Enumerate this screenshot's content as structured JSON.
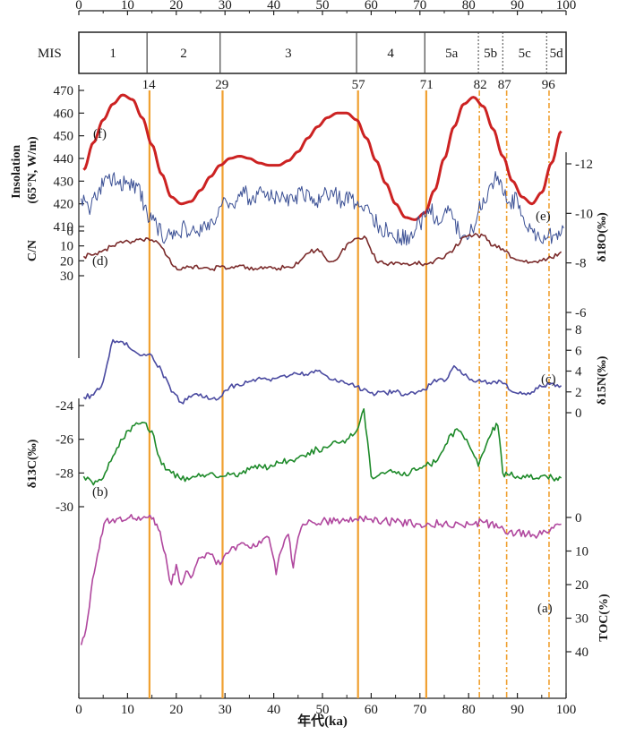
{
  "chart_data": {
    "type": "line",
    "xlabel": "年代(ka)",
    "xlim": [
      0,
      100
    ],
    "x_ticks": [
      0,
      10,
      20,
      30,
      40,
      50,
      60,
      70,
      80,
      90,
      100
    ],
    "mis": {
      "label": "MIS",
      "stages": [
        {
          "name": "1",
          "start": 0,
          "end": 14
        },
        {
          "name": "2",
          "start": 14,
          "end": 29
        },
        {
          "name": "3",
          "start": 29,
          "end": 57
        },
        {
          "name": "4",
          "start": 57,
          "end": 71
        },
        {
          "name": "5a",
          "start": 71,
          "end": 82
        },
        {
          "name": "5b",
          "start": 82,
          "end": 87
        },
        {
          "name": "5c",
          "start": 87,
          "end": 96
        },
        {
          "name": "5d",
          "start": 96,
          "end": 100
        }
      ],
      "boundaries": [
        14,
        29,
        57,
        71,
        82,
        87,
        96
      ],
      "boundary_labels": [
        "14",
        "29",
        "57",
        "71",
        "82",
        "87",
        "96"
      ]
    },
    "marker_lines": {
      "solid": [
        14.5,
        29.5,
        57.3,
        71.3
      ],
      "dashed": [
        82.2,
        87.8,
        96.5
      ],
      "color": "#f0a030"
    },
    "series": [
      {
        "id": "f",
        "name": "Insolation (65°N, W/m)",
        "tag": "(f)",
        "color": "#cc2222",
        "axis_title": "Insolation\n(65°N, W/m)",
        "ylim": [
          410,
          470
        ],
        "ticks": [
          "470",
          "460",
          "450",
          "440",
          "430",
          "420",
          "410"
        ],
        "tick_values": [
          470,
          460,
          450,
          440,
          430,
          420,
          410
        ],
        "x": [
          1,
          3,
          5,
          7,
          9,
          11,
          13,
          15,
          17,
          19,
          21,
          23,
          25,
          27,
          29,
          31,
          33,
          35,
          37,
          39,
          41,
          43,
          45,
          47,
          49,
          51,
          53,
          55,
          57,
          59,
          61,
          63,
          65,
          67,
          69,
          71,
          73,
          75,
          77,
          79,
          81,
          83,
          85,
          87,
          89,
          91,
          93,
          95,
          97,
          99
        ],
        "values": [
          435,
          447,
          457,
          464,
          468,
          466,
          458,
          446,
          433,
          423,
          420,
          421,
          426,
          432,
          437,
          440,
          441,
          440,
          438,
          437,
          437,
          439,
          443,
          449,
          454,
          458,
          460,
          460,
          457,
          449,
          439,
          429,
          420,
          414,
          413,
          416,
          426,
          440,
          454,
          464,
          467,
          463,
          453,
          441,
          430,
          423,
          420,
          425,
          438,
          452
        ]
      },
      {
        "id": "e",
        "name": "δ18O(‰)",
        "tag": "(e)",
        "color": "#3a4f94",
        "axis_title": "δ18O(‰)",
        "ylim": [
          -6,
          -12
        ],
        "ticks": [
          "-12",
          "-10",
          "-8",
          "-6"
        ],
        "tick_values": [
          -12,
          -10,
          -8,
          -6
        ],
        "x": [
          0.5,
          2,
          4,
          6,
          8,
          10,
          12,
          14,
          16,
          18,
          20,
          22,
          24,
          26,
          28,
          30,
          32,
          34,
          36,
          38,
          40,
          42,
          44,
          46,
          48,
          50,
          52,
          54,
          56,
          58,
          60,
          62,
          64,
          66,
          68,
          70,
          72,
          74,
          76,
          78,
          80,
          82,
          84,
          86,
          88,
          90,
          92,
          94,
          96,
          98,
          99.5
        ],
        "values": [
          -10.6,
          -10.2,
          -10.9,
          -11.4,
          -11.3,
          -11.2,
          -11.1,
          -10.0,
          -9.5,
          -9.0,
          -9.3,
          -9.4,
          -9.2,
          -9.5,
          -9.6,
          -10.6,
          -10.2,
          -10.8,
          -10.5,
          -10.9,
          -10.6,
          -10.7,
          -10.5,
          -10.8,
          -10.4,
          -10.7,
          -10.9,
          -10.5,
          -10.6,
          -10.3,
          -10.0,
          -9.4,
          -9.2,
          -9.0,
          -9.1,
          -9.6,
          -10.2,
          -9.6,
          -10.1,
          -9.3,
          -9.0,
          -10.1,
          -10.9,
          -11.5,
          -10.4,
          -10.6,
          -9.4,
          -9.1,
          -9.0,
          -9.2,
          -9.4
        ]
      },
      {
        "id": "d",
        "name": "C/N",
        "tag": "(d)",
        "color": "#7a2a2a",
        "axis_title": "C/N",
        "ylim": [
          0,
          35
        ],
        "ticks": [
          "0",
          "10",
          "20",
          "30"
        ],
        "tick_values": [
          0,
          10,
          20,
          30
        ],
        "x": [
          1,
          3,
          5,
          7,
          9,
          11,
          13,
          15,
          17,
          19,
          21,
          23,
          25,
          27,
          29,
          31,
          33,
          35,
          37,
          39,
          41,
          43,
          45,
          47,
          49,
          51,
          53,
          55,
          57,
          59,
          61,
          63,
          65,
          67,
          69,
          71,
          73,
          75,
          77,
          79,
          81,
          83,
          85,
          87,
          89,
          91,
          93,
          95,
          97,
          99
        ],
        "values": [
          17,
          16,
          13,
          10,
          8,
          7,
          6,
          6,
          11,
          22,
          26,
          24,
          25,
          26,
          24,
          25,
          23,
          26,
          25,
          24,
          25,
          24,
          22,
          15,
          12,
          20,
          19,
          9,
          5,
          5,
          20,
          22,
          21,
          22,
          21,
          22,
          20,
          18,
          12,
          4,
          3,
          3,
          10,
          12,
          18,
          20,
          21,
          20,
          18,
          14
        ]
      },
      {
        "id": "c",
        "name": "δ15N(‰)",
        "tag": "(c)",
        "color": "#4a4aa0",
        "axis_title": "δ15N(‰)",
        "ylim": [
          0,
          8
        ],
        "ticks": [
          "8",
          "6",
          "4",
          "2",
          "0"
        ],
        "tick_values": [
          8,
          6,
          4,
          2,
          0
        ],
        "x": [
          1,
          3,
          5,
          7,
          9,
          11,
          13,
          15,
          17,
          19,
          21,
          23,
          25,
          27,
          29,
          31,
          33,
          35,
          37,
          39,
          41,
          43,
          45,
          47,
          49,
          51,
          53,
          55,
          57,
          59,
          61,
          63,
          65,
          67,
          69,
          71,
          73,
          75,
          77,
          79,
          81,
          83,
          85,
          87,
          89,
          91,
          93,
          95,
          97,
          99
        ],
        "values": [
          1.5,
          1.7,
          3.0,
          7.0,
          6.8,
          6.0,
          5.5,
          5.5,
          4.0,
          2.0,
          1.0,
          1.5,
          1.8,
          1.3,
          1.5,
          2.5,
          2.6,
          3.0,
          3.4,
          3.2,
          3.4,
          3.5,
          3.7,
          3.6,
          4.0,
          3.5,
          3.0,
          2.8,
          2.5,
          2.2,
          1.8,
          1.9,
          2.0,
          1.8,
          1.8,
          2.2,
          3.2,
          3.0,
          4.5,
          3.6,
          3.0,
          3.0,
          3.0,
          2.8,
          2.0,
          1.8,
          2.0,
          2.5,
          2.8,
          2.6
        ]
      },
      {
        "id": "b",
        "name": "δ13C(‰)",
        "tag": "(b)",
        "color": "#1e8a2a",
        "axis_title": "δ13C(‰)",
        "ylim": [
          -30,
          -24
        ],
        "ticks": [
          "-24",
          "-26",
          "-28",
          "-30"
        ],
        "tick_values": [
          -24,
          -26,
          -28,
          -30
        ],
        "x": [
          1,
          3,
          5,
          7,
          9,
          11,
          13,
          15,
          17,
          19,
          21,
          23,
          25,
          27,
          29,
          31,
          33,
          35,
          37,
          39,
          41,
          43,
          45,
          47,
          49,
          51,
          53,
          55,
          57,
          58.5,
          60,
          62,
          64,
          66,
          68,
          70,
          72,
          74,
          76,
          78,
          80,
          82,
          84,
          85,
          86,
          87,
          88,
          90,
          92,
          94,
          96,
          98,
          99
        ],
        "values": [
          -28.2,
          -28.7,
          -28.3,
          -27.0,
          -26.0,
          -25.2,
          -25.0,
          -25.5,
          -27.5,
          -28.0,
          -28.4,
          -28.3,
          -28.2,
          -28.0,
          -28.2,
          -28.1,
          -28.0,
          -27.8,
          -27.5,
          -27.7,
          -27.4,
          -27.3,
          -27.1,
          -26.8,
          -26.6,
          -26.5,
          -26.2,
          -26.0,
          -25.5,
          -24.2,
          -28.2,
          -28.0,
          -27.8,
          -28.1,
          -28.0,
          -27.7,
          -27.5,
          -27.0,
          -25.8,
          -25.5,
          -26.3,
          -27.6,
          -26.0,
          -25.3,
          -25.2,
          -28.0,
          -28.1,
          -28.2,
          -28.1,
          -28.3,
          -28.2,
          -28.3,
          -28.3
        ]
      },
      {
        "id": "a",
        "name": "TOC(%)",
        "tag": "(a)",
        "color": "#b0479e",
        "axis_title": "TOC(%)",
        "ylim": [
          0,
          40
        ],
        "ticks": [
          "0",
          "10",
          "20",
          "30",
          "40"
        ],
        "tick_values": [
          0,
          10,
          20,
          30,
          40
        ],
        "x": [
          0.5,
          1.5,
          2.5,
          3.5,
          4.5,
          5.5,
          7,
          10,
          13,
          15,
          16,
          17,
          19,
          20,
          21,
          22,
          23,
          25,
          27,
          29,
          31,
          33,
          35,
          37,
          39,
          40.5,
          41.5,
          43,
          44,
          45,
          46,
          48,
          50,
          55,
          60,
          65,
          70,
          75,
          80,
          83,
          86,
          88,
          90,
          92,
          95,
          97,
          99
        ],
        "values": [
          38,
          33,
          22,
          14,
          6,
          1,
          0.5,
          0.3,
          0.3,
          0.5,
          2,
          7,
          20,
          14,
          20,
          16,
          18,
          12,
          11,
          14,
          10,
          8,
          9,
          7,
          6,
          17,
          10,
          5,
          15,
          6,
          2,
          1.5,
          1,
          0.7,
          0.5,
          1.5,
          2,
          1.8,
          2,
          1.5,
          3,
          5,
          4,
          5,
          5,
          3,
          2
        ]
      }
    ]
  }
}
